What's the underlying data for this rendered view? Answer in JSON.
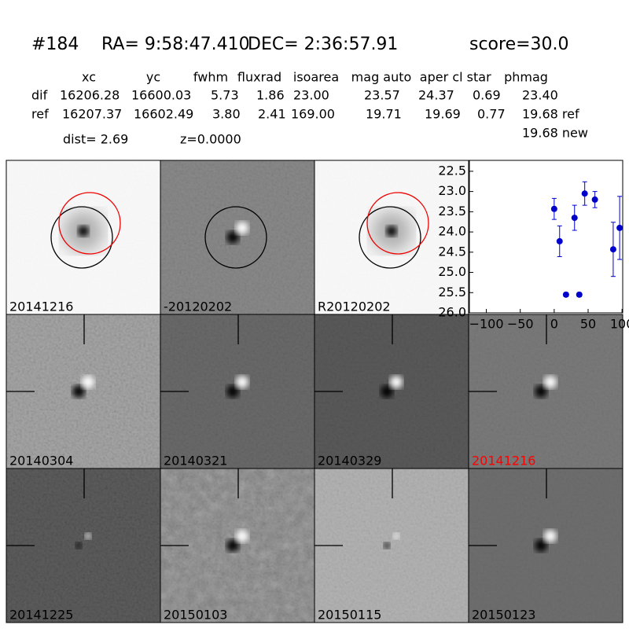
{
  "header": {
    "id": "#184",
    "ra": "RA= 9:58:47.410",
    "dec": "DEC= 2:36:57.91",
    "score": "score=30.0"
  },
  "table": {
    "columns": [
      "xc",
      "yc",
      "fwhm",
      "fluxrad",
      "isoarea",
      "mag auto",
      "aper",
      "cl star",
      "phmag"
    ],
    "rows": [
      [
        "dif",
        "16206.28",
        "16600.03",
        "5.73",
        "1.86",
        "23.00",
        "23.57",
        "24.37",
        "0.69",
        "23.40"
      ],
      [
        "ref",
        "16207.37",
        "16602.49",
        "3.80",
        "2.41",
        "169.00",
        "19.71",
        "19.69",
        "0.77",
        "19.68 ref"
      ]
    ],
    "note": "19.68 new"
  },
  "dist": "dist=  2.69",
  "z": "z=0.0000",
  "stamps": [
    {
      "label": "20141216"
    },
    {
      "label": "-20120202"
    },
    {
      "label": "R20120202"
    },
    {
      "label": "20140304"
    },
    {
      "label": "20140321"
    },
    {
      "label": "20140329"
    },
    {
      "label": "20141216",
      "color": "#ff0000"
    },
    {
      "label": "20141225"
    },
    {
      "label": "20150103"
    },
    {
      "label": "20150115"
    },
    {
      "label": "20150123"
    }
  ],
  "chart_data": {
    "type": "scatter",
    "xlim": [
      -125,
      101
    ],
    "ylim": [
      26.0,
      22.23
    ],
    "xticks": [
      {
        "value": -100,
        "label": "−100"
      },
      {
        "value": -50,
        "label": "−50"
      },
      0,
      50,
      100
    ],
    "yticks": [
      {
        "value": 22.5,
        "label": "22.5"
      },
      {
        "value": 23,
        "label": "23.0"
      },
      {
        "value": 23.5,
        "label": "23.5"
      },
      {
        "value": 24,
        "label": "24.0"
      },
      {
        "value": 24.5,
        "label": "24.5"
      },
      {
        "value": 25,
        "label": "25.0"
      },
      {
        "value": 25.5,
        "label": "25.5"
      },
      {
        "value": 26,
        "label": "26.0"
      }
    ],
    "series": [
      {
        "color": "#0000cc",
        "x": [
          0,
          8,
          17.4,
          30,
          37,
          45,
          60,
          87,
          96.5
        ],
        "values": [
          23.43,
          24.23,
          25.55,
          23.65,
          25.55,
          23.05,
          23.2,
          24.43,
          23.9
        ],
        "errors": [
          0.26,
          0.38,
          0.05,
          0.31,
          0.05,
          0.29,
          0.2,
          0.67,
          0.78
        ]
      }
    ]
  }
}
